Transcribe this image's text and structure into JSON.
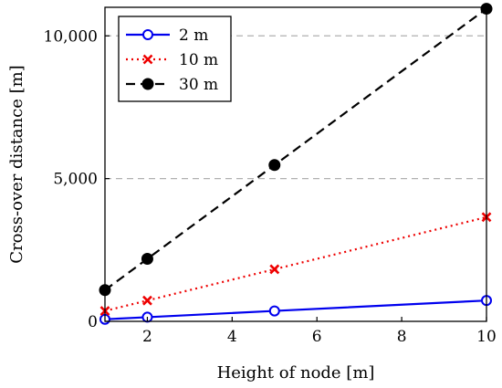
{
  "chart_data": {
    "type": "line",
    "xlabel": "Height of node [m]",
    "ylabel": "Cross-over distance [m]",
    "xlim": [
      1,
      10
    ],
    "ylim": [
      0,
      11000
    ],
    "x_ticks": [
      2,
      4,
      6,
      8,
      10
    ],
    "x_tick_labels": [
      "2",
      "4",
      "6",
      "8",
      "10"
    ],
    "y_ticks": [
      0,
      5000,
      10000
    ],
    "y_tick_labels": [
      "0",
      "5,000",
      "10,000"
    ],
    "grid": "horizontal dashed at y ticks",
    "legend_position": "top-left",
    "series": [
      {
        "name": "2 m",
        "color": "#0000ee",
        "line_style": "solid",
        "marker": "open-circle",
        "x": [
          1,
          2,
          5,
          10
        ],
        "y": [
          73,
          146,
          365,
          730
        ]
      },
      {
        "name": "10 m",
        "color": "#ee0000",
        "line_style": "dotted",
        "marker": "x",
        "x": [
          1,
          2,
          5,
          10
        ],
        "y": [
          365,
          730,
          1825,
          3650
        ]
      },
      {
        "name": "30 m",
        "color": "#000000",
        "line_style": "dashed",
        "marker": "filled-circle",
        "x": [
          1,
          2,
          5,
          10
        ],
        "y": [
          1095,
          2190,
          5475,
          10950
        ]
      }
    ]
  }
}
